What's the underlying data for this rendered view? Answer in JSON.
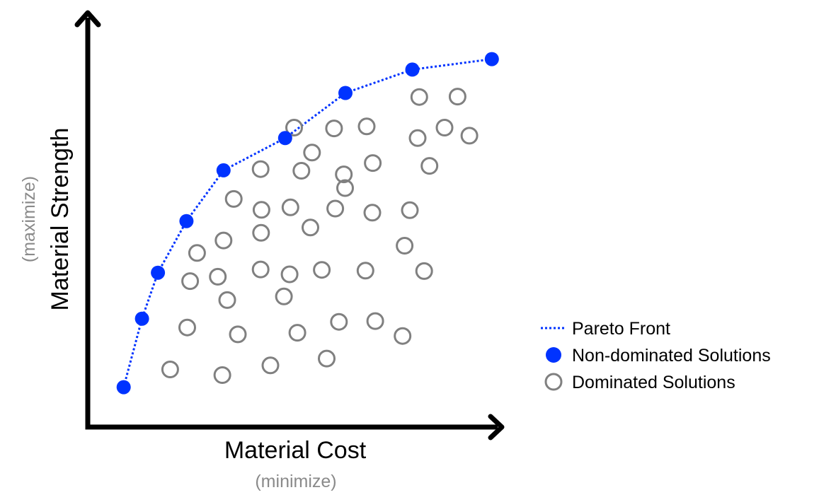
{
  "chart_data": {
    "type": "scatter",
    "title": "",
    "xlabel": "Material Cost",
    "xlabel_note": "(minimize)",
    "ylabel": "Material Strength",
    "ylabel_note": "(maximize)",
    "xlim": [
      0,
      100
    ],
    "ylim": [
      0,
      100
    ],
    "grid": false,
    "legend_position": "right",
    "series": [
      {
        "name": "Pareto Front",
        "kind": "line",
        "style": "dotted",
        "color": "#0033ff",
        "points": [
          [
            8.8,
            9.2
          ],
          [
            13.3,
            26.2
          ],
          [
            17.2,
            37.6
          ],
          [
            24.2,
            50.4
          ],
          [
            33.3,
            63.0
          ],
          [
            48.4,
            71.0
          ],
          [
            63.2,
            82.2
          ],
          [
            79.6,
            88.0
          ],
          [
            99.1,
            90.6
          ]
        ]
      },
      {
        "name": "Non-dominated Solutions",
        "kind": "marker",
        "marker": "filled-circle",
        "color": "#0033ff",
        "points": [
          [
            8.8,
            9.2
          ],
          [
            13.3,
            26.2
          ],
          [
            17.2,
            37.6
          ],
          [
            24.2,
            50.4
          ],
          [
            33.3,
            63.0
          ],
          [
            48.4,
            71.0
          ],
          [
            63.2,
            82.2
          ],
          [
            79.6,
            88.0
          ],
          [
            99.1,
            90.6
          ]
        ]
      },
      {
        "name": "Dominated Solutions",
        "kind": "marker",
        "marker": "hollow-circle",
        "color": "#808080",
        "points": [
          [
            20.2,
            13.6
          ],
          [
            33.0,
            12.2
          ],
          [
            44.8,
            14.6
          ],
          [
            58.6,
            16.3
          ],
          [
            24.4,
            24.0
          ],
          [
            36.8,
            22.3
          ],
          [
            51.4,
            22.7
          ],
          [
            61.6,
            25.4
          ],
          [
            70.5,
            25.6
          ],
          [
            77.2,
            21.9
          ],
          [
            34.2,
            30.8
          ],
          [
            48.1,
            31.7
          ],
          [
            25.1,
            35.5
          ],
          [
            31.9,
            36.6
          ],
          [
            42.4,
            38.4
          ],
          [
            49.5,
            37.2
          ],
          [
            57.4,
            38.3
          ],
          [
            68.1,
            38.1
          ],
          [
            82.5,
            38.0
          ],
          [
            26.8,
            42.5
          ],
          [
            33.3,
            45.6
          ],
          [
            42.5,
            47.5
          ],
          [
            54.6,
            48.8
          ],
          [
            77.7,
            44.3
          ],
          [
            35.8,
            55.9
          ],
          [
            42.6,
            53.2
          ],
          [
            49.7,
            53.8
          ],
          [
            60.7,
            53.5
          ],
          [
            69.8,
            52.5
          ],
          [
            79.0,
            53.1
          ],
          [
            55.0,
            67.4
          ],
          [
            63.1,
            58.6
          ],
          [
            69.9,
            64.8
          ],
          [
            52.4,
            62.9
          ],
          [
            62.8,
            62.0
          ],
          [
            42.4,
            63.3
          ],
          [
            60.4,
            73.4
          ],
          [
            68.4,
            73.9
          ],
          [
            50.6,
            73.6
          ],
          [
            81.3,
            81.2
          ],
          [
            90.7,
            81.3
          ],
          [
            83.8,
            64.1
          ],
          [
            87.5,
            73.6
          ],
          [
            80.9,
            71.0
          ],
          [
            93.6,
            71.6
          ]
        ]
      }
    ]
  }
}
